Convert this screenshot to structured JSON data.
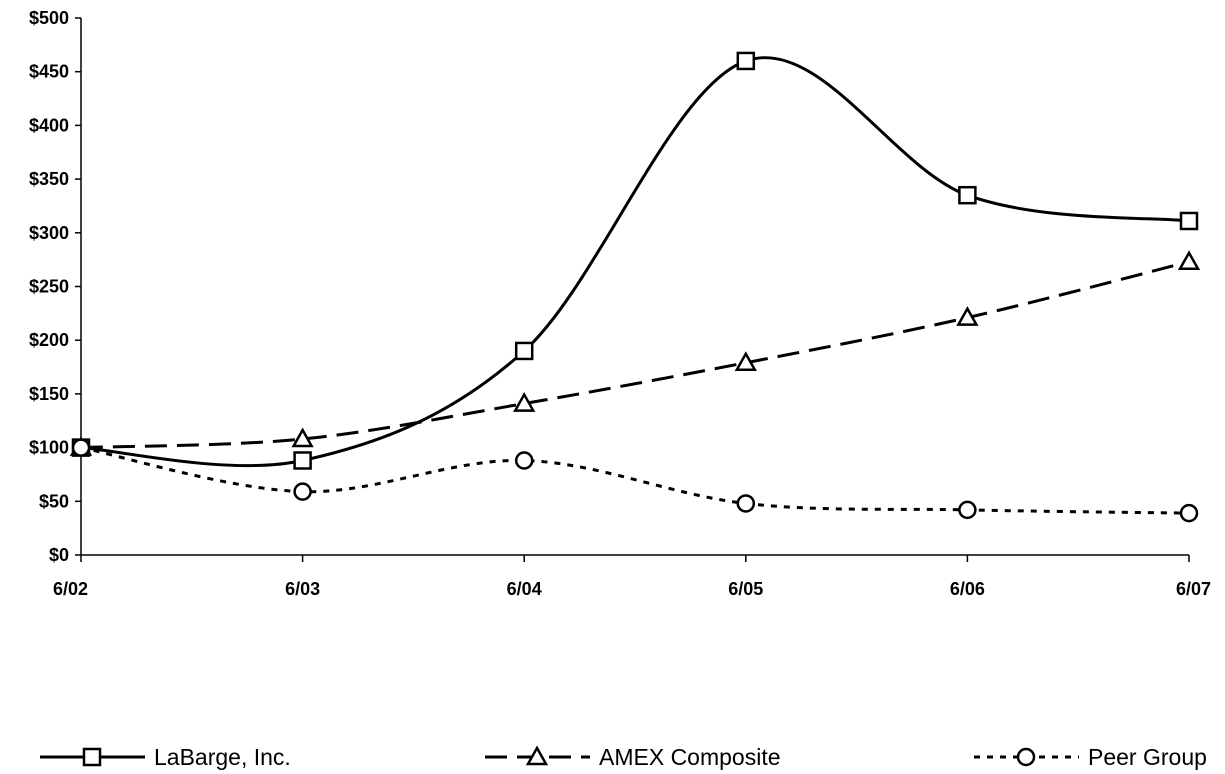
{
  "chart_data": {
    "type": "line",
    "categories": [
      "6/02",
      "6/03",
      "6/04",
      "6/05",
      "6/06",
      "6/07"
    ],
    "series": [
      {
        "name": "LaBarge, Inc.",
        "values": [
          100,
          88,
          190,
          460,
          335,
          311
        ],
        "line_style": "solid",
        "marker": "square"
      },
      {
        "name": "AMEX Composite",
        "values": [
          100,
          108,
          141,
          179,
          221,
          273
        ],
        "line_style": "dashed",
        "marker": "triangle"
      },
      {
        "name": "Peer Group",
        "values": [
          100,
          59,
          88,
          48,
          42,
          39
        ],
        "line_style": "dotted",
        "marker": "circle"
      }
    ],
    "yticks": [
      "$0",
      "$50",
      "$100",
      "$150",
      "$200",
      "$250",
      "$300",
      "$350",
      "$400",
      "$450",
      "$500"
    ],
    "ylim": [
      0,
      500
    ],
    "grid": false,
    "legend_position": "bottom",
    "colors": {
      "line": "#000000",
      "marker_fill": "#ffffff",
      "background": "#ffffff"
    }
  }
}
